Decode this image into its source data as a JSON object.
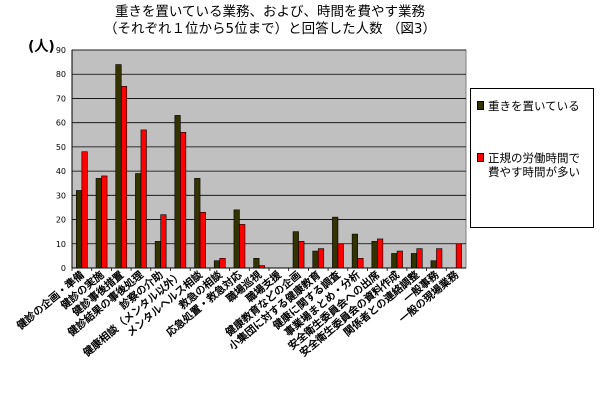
{
  "chart_data": {
    "type": "bar",
    "title_lines": [
      "重きを置いている業務、および、時間を費やす業務",
      "（それぞれ１位から5位まで）と回答した人数 （図3）"
    ],
    "unit_label": "(人)",
    "yticks": [
      0,
      10,
      20,
      30,
      40,
      50,
      60,
      70,
      80,
      90
    ],
    "ylim": [
      0,
      90
    ],
    "grid": true,
    "legend_position": "right",
    "categories": [
      "健診の企画・準備",
      "健診の実施",
      "健診事後措置",
      "健診結果の事後処理",
      "診察の介助",
      "健康相談（メンタル以外）",
      "メンタルヘルス相談",
      "救急の相談",
      "応急処置・救急対応",
      "職場巡視",
      "職場支援",
      "健康教育などの企画",
      "小集団に対する健康教育",
      "健康に関する調査",
      "事業場まとめ・分析",
      "安全衛生委員会への出席",
      "安全衛生委員会の資料作成",
      "関係者との連絡調整",
      "一般事務",
      "一般の現場業務"
    ],
    "series": [
      {
        "name": "重きを置いている",
        "color": "#333300",
        "values": [
          32,
          37,
          84,
          39,
          11,
          63,
          37,
          3,
          24,
          4,
          0,
          15,
          7,
          21,
          14,
          11,
          6,
          6,
          3,
          0
        ]
      },
      {
        "name": "正規の労働時間で費やす時間が多い",
        "color": "#ff0000",
        "values": [
          48,
          38,
          75,
          57,
          22,
          56,
          23,
          4,
          18,
          1,
          0,
          11,
          8,
          10,
          4,
          12,
          7,
          8,
          8,
          10
        ]
      }
    ],
    "plot_area_color": "#c0c0c0"
  }
}
